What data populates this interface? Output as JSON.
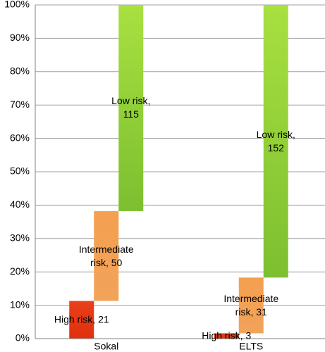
{
  "chart_data": {
    "type": "bar",
    "stacked": true,
    "categories": [
      "Sokal",
      "ELTS"
    ],
    "series": [
      {
        "name": "High risk",
        "color": "#e8401a",
        "values": [
          11.3,
          1.6
        ],
        "labels": [
          "High risk, 21",
          "High risk, 3"
        ]
      },
      {
        "name": "Intermediate risk",
        "color": "#f4a050",
        "values": [
          26.9,
          16.7
        ],
        "labels": [
          "Intermediate\nrisk, 50",
          "Intermediate\nrisk, 31"
        ]
      },
      {
        "name": "Low risk",
        "color": "#94d03a",
        "values": [
          61.8,
          81.7
        ],
        "labels": [
          "Low risk,\n115",
          "Low risk,\n152"
        ]
      }
    ],
    "ylim": [
      0,
      100
    ],
    "yticks": [
      {
        "value": 0,
        "label": "0%"
      },
      {
        "value": 10,
        "label": "10%"
      },
      {
        "value": 20,
        "label": "20%"
      },
      {
        "value": 30,
        "label": "30%"
      },
      {
        "value": 40,
        "label": "40%"
      },
      {
        "value": 50,
        "label": "50%"
      },
      {
        "value": 60,
        "label": "60%"
      },
      {
        "value": 70,
        "label": "70%"
      },
      {
        "value": 80,
        "label": "80%"
      },
      {
        "value": 90,
        "label": "90%"
      },
      {
        "value": 100,
        "label": "100%"
      }
    ],
    "grid": true
  }
}
